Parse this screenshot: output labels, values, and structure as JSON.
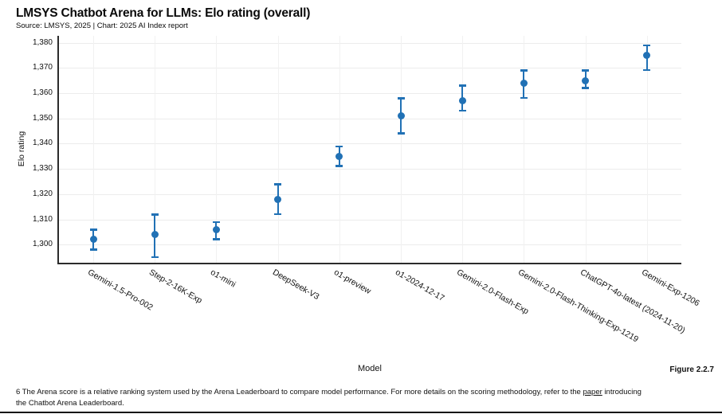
{
  "header": {
    "title": "LMSYS Chatbot Arena for LLMs: Elo rating (overall)",
    "subtitle": "Source: LMSYS, 2025 | Chart: 2025 AI Index report"
  },
  "chart_data": {
    "type": "scatter",
    "title": "LMSYS Chatbot Arena for LLMs: Elo rating (overall)",
    "xlabel": "Model",
    "ylabel": "Elo rating",
    "ylim": [
      1293,
      1383
    ],
    "grid": true,
    "legend": "none",
    "ytick_values": [
      1300,
      1310,
      1320,
      1330,
      1340,
      1350,
      1360,
      1370,
      1380
    ],
    "ytick_labels": [
      "1,300",
      "1,310",
      "1,320",
      "1,330",
      "1,340",
      "1,350",
      "1,360",
      "1,370",
      "1,380"
    ],
    "categories": [
      "Gemini-1.5-Pro-002",
      "Step-2-16K-Exp",
      "o1-mini",
      "DeepSeek-V3",
      "o1-preview",
      "o1-2024-12-17",
      "Gemini-2.0-Flash-Exp",
      "Gemini-2.0-Flash-Thinking-Exp-1219",
      "ChatGPT-4o-latest (2024-11-20)",
      "Gemini-Exp-1206"
    ],
    "series": [
      {
        "name": "Elo rating",
        "values": [
          1302,
          1304,
          1306,
          1318,
          1335,
          1351,
          1357,
          1364,
          1365,
          1375
        ],
        "error_low": [
          1298,
          1295,
          1302,
          1312,
          1331,
          1344,
          1353,
          1358,
          1362,
          1369
        ],
        "error_high": [
          1306,
          1312,
          1309,
          1324,
          1339,
          1358,
          1363,
          1369,
          1369,
          1379
        ]
      }
    ]
  },
  "figure_label": "Figure 2.2.7",
  "footnote": {
    "line1_before_link": "6 The Arena score is a relative ranking system used by the Arena Leaderboard to compare model performance. For more details on the scoring methodology, refer to the ",
    "link_text": "paper",
    "line1_after_link": " introducing",
    "line2": "the Chatbot Arena Leaderboard."
  },
  "colors": {
    "point_blue": "#2171b5",
    "axis": "#2b2b2b",
    "grid": "#ececec"
  }
}
